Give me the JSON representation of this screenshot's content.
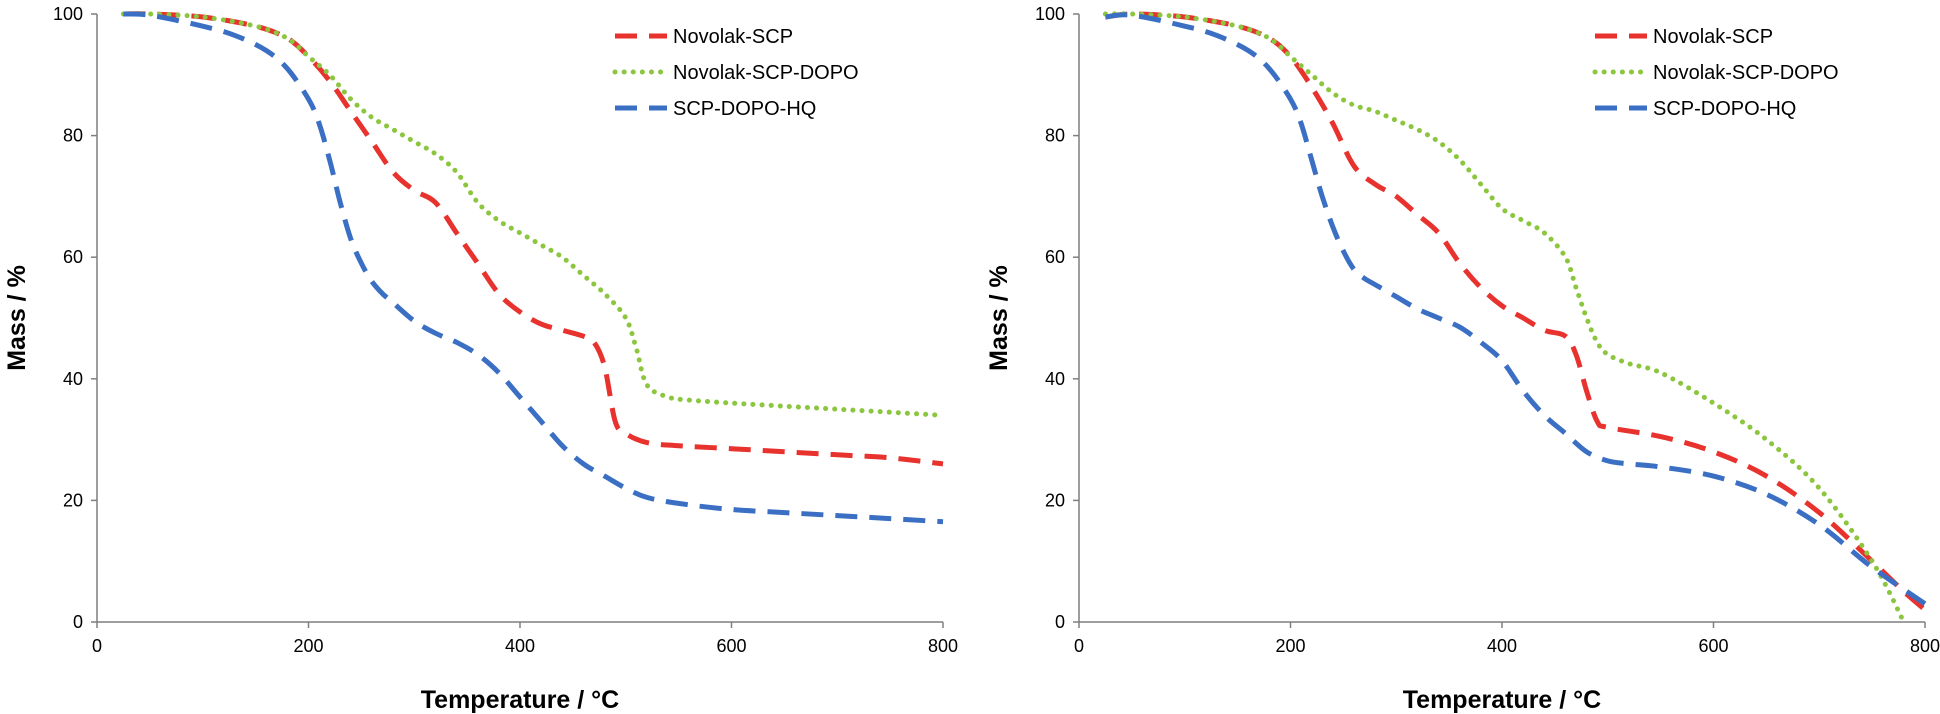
{
  "chart_data": [
    {
      "type": "line",
      "title": "",
      "xlabel": "Temperature / °C",
      "ylabel": "Mass / %",
      "xlim": [
        0,
        800
      ],
      "ylim": [
        0,
        100
      ],
      "xticks": [
        0,
        200,
        400,
        600,
        800
      ],
      "yticks": [
        0,
        20,
        40,
        60,
        80,
        100
      ],
      "grid": false,
      "legend": "top-right",
      "series": [
        {
          "name": "Novolak-SCP",
          "color": "#e8322e",
          "style": "dashed",
          "x": [
            25,
            50,
            100,
            150,
            180,
            200,
            220,
            240,
            260,
            280,
            300,
            320,
            340,
            360,
            380,
            400,
            420,
            440,
            460,
            470,
            480,
            490,
            500,
            520,
            550,
            600,
            650,
            700,
            750,
            800
          ],
          "y": [
            100,
            100,
            99.5,
            98,
            96,
            93,
            89,
            84,
            79,
            74,
            71,
            69,
            64,
            59,
            54,
            51,
            49,
            48,
            47,
            46,
            42,
            33,
            31,
            29.5,
            29,
            28.5,
            28,
            27.5,
            27,
            26
          ]
        },
        {
          "name": "Novolak-SCP-DOPO",
          "color": "#8cc63f",
          "style": "dotted",
          "x": [
            25,
            50,
            100,
            150,
            180,
            200,
            220,
            240,
            260,
            280,
            300,
            320,
            340,
            360,
            380,
            400,
            420,
            440,
            460,
            480,
            500,
            510,
            520,
            540,
            560,
            600,
            650,
            700,
            750,
            800
          ],
          "y": [
            100,
            100,
            99.5,
            98,
            96,
            93,
            90,
            86,
            83,
            81,
            79,
            77,
            74,
            69,
            66,
            64,
            62,
            60,
            57,
            54,
            50,
            45,
            39,
            37,
            36.5,
            36,
            35.5,
            35,
            34.5,
            34
          ]
        },
        {
          "name": "SCP-DOPO-HQ",
          "color": "#3a6fc4",
          "style": "dashed",
          "x": [
            25,
            50,
            100,
            130,
            160,
            180,
            200,
            210,
            220,
            230,
            240,
            250,
            260,
            270,
            280,
            300,
            320,
            340,
            360,
            380,
            400,
            420,
            440,
            460,
            480,
            500,
            520,
            550,
            600,
            650,
            700,
            750,
            800
          ],
          "y": [
            100,
            99.8,
            98,
            96.5,
            94,
            91,
            86,
            82,
            76,
            69,
            63,
            59,
            56,
            54,
            52.5,
            49.5,
            47.5,
            46,
            44,
            41,
            37,
            33,
            29,
            26,
            24,
            22,
            20.5,
            19.5,
            18.5,
            18,
            17.5,
            17,
            16.5
          ]
        }
      ]
    },
    {
      "type": "line",
      "title": "",
      "xlabel": "Temperature / °C",
      "ylabel": "Mass / %",
      "xlim": [
        0,
        800
      ],
      "ylim": [
        0,
        100
      ],
      "xticks": [
        0,
        200,
        400,
        600,
        800
      ],
      "yticks": [
        0,
        20,
        40,
        60,
        80,
        100
      ],
      "grid": false,
      "legend": "top-right",
      "series": [
        {
          "name": "Novolak-SCP",
          "color": "#e8322e",
          "style": "dashed",
          "x": [
            25,
            50,
            100,
            150,
            180,
            200,
            220,
            240,
            260,
            280,
            300,
            320,
            340,
            360,
            380,
            400,
            420,
            440,
            460,
            470,
            480,
            490,
            500,
            550,
            600,
            650,
            700,
            750,
            780,
            800
          ],
          "y": [
            99.5,
            100,
            99.5,
            98,
            96,
            93,
            88,
            82,
            75,
            72,
            70,
            67,
            64,
            59,
            55,
            52,
            50,
            48,
            47,
            44,
            38,
            33,
            32,
            30.5,
            28,
            24,
            18,
            10,
            5,
            2
          ]
        },
        {
          "name": "Novolak-SCP-DOPO",
          "color": "#8cc63f",
          "style": "dotted",
          "x": [
            25,
            50,
            100,
            150,
            180,
            200,
            220,
            240,
            260,
            280,
            300,
            320,
            340,
            360,
            380,
            400,
            420,
            440,
            460,
            470,
            480,
            490,
            500,
            520,
            550,
            600,
            650,
            700,
            750,
            780
          ],
          "y": [
            100,
            100,
            99.5,
            98,
            96,
            93,
            90,
            87,
            85,
            84,
            82.5,
            81,
            79,
            76,
            72,
            68,
            66,
            64,
            60,
            55,
            50,
            46,
            44,
            42.5,
            41,
            36,
            30,
            22,
            10,
            0
          ]
        },
        {
          "name": "SCP-DOPO-HQ",
          "color": "#3a6fc4",
          "style": "dashed",
          "x": [
            25,
            50,
            100,
            130,
            160,
            180,
            200,
            210,
            220,
            230,
            240,
            250,
            260,
            270,
            280,
            300,
            320,
            340,
            360,
            380,
            400,
            420,
            440,
            460,
            480,
            500,
            520,
            550,
            600,
            650,
            700,
            750,
            800
          ],
          "y": [
            99.5,
            99.8,
            98,
            96.5,
            94,
            91,
            86,
            82,
            76,
            70,
            65,
            61,
            58,
            56.5,
            55.5,
            53.5,
            51.5,
            50,
            48.5,
            46,
            43,
            38,
            34,
            31,
            28,
            26.5,
            26,
            25.5,
            24,
            21,
            16,
            9,
            3
          ]
        }
      ]
    }
  ]
}
